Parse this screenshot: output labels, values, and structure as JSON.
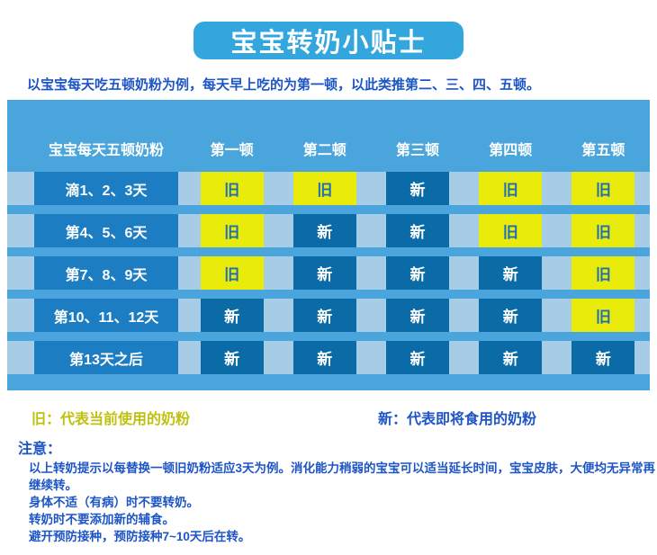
{
  "page": {
    "title": "宝宝转奶小贴士",
    "subtitle": "以宝宝每天吃五顿奶粉为例，每天早上吃的为第一顿，以此类推第二、三、四、五顿。"
  },
  "table": {
    "header": [
      "宝宝每天五顿奶粉",
      "第一顿",
      "第二顿",
      "第三顿",
      "第四顿",
      "第五顿"
    ],
    "rows": [
      {
        "label": "滴1、2、3天",
        "cells": [
          "旧",
          "旧",
          "新",
          "旧",
          "旧"
        ]
      },
      {
        "label": "第4、5、6天",
        "cells": [
          "旧",
          "新",
          "新",
          "旧",
          "旧"
        ]
      },
      {
        "label": "第7、8、9天",
        "cells": [
          "旧",
          "新",
          "新",
          "新",
          "旧"
        ]
      },
      {
        "label": "第10、11、12天",
        "cells": [
          "新",
          "新",
          "新",
          "新",
          "旧"
        ]
      },
      {
        "label": "第13天之后",
        "cells": [
          "新",
          "新",
          "新",
          "新",
          "新"
        ]
      }
    ],
    "cell_legend": {
      "old_value": "旧",
      "new_value": "新"
    }
  },
  "legend": {
    "old": "旧：代表当前使用的奶粉",
    "new": "新：代表即将食用的奶粉"
  },
  "notes": {
    "heading": "注意：",
    "lines": [
      "以上转奶提示以每替换一顿旧奶粉适应3天为例。消化能力稍弱的宝宝可以适当延长时间，宝宝皮肤，大便均无异常再继续转。",
      "身体不适（有病）时不要转奶。",
      "转奶时不要添加新的辅食。",
      "避开预防接种，预防接种7~10天后在转。"
    ]
  },
  "colors": {
    "title_bg": "#33a6de",
    "text_blue": "#1d55c6",
    "table_bg": "#49a5db",
    "band": "#a7cce6",
    "label_bg": "#1c7dc2",
    "new_bg": "#0b6ba6",
    "old_bg": "#e9ec0b",
    "old_text": "#1d6fb5",
    "legend_old": "#bfc110"
  }
}
